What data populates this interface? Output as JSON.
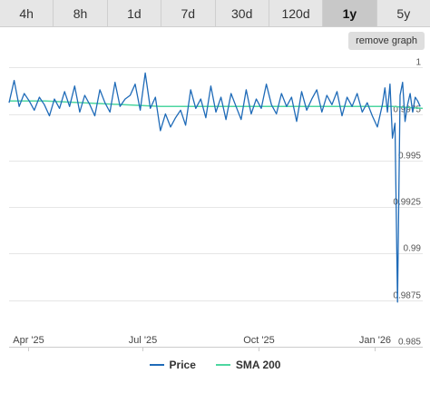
{
  "range_tabs": [
    {
      "label": "4h",
      "active": false
    },
    {
      "label": "8h",
      "active": false
    },
    {
      "label": "1d",
      "active": false
    },
    {
      "label": "7d",
      "active": false
    },
    {
      "label": "30d",
      "active": false
    },
    {
      "label": "120d",
      "active": false
    },
    {
      "label": "1y",
      "active": true
    },
    {
      "label": "5y",
      "active": false
    }
  ],
  "remove_graph_label": "remove graph",
  "colors": {
    "price": "#1f6bb8",
    "sma": "#4dd6a0",
    "grid": "#e6e6e6",
    "tab_active": "#c8c8c8"
  },
  "chart_data": {
    "type": "line",
    "title": "",
    "xlabel": "",
    "ylabel": "",
    "ylim": [
      0.985,
      1.0005
    ],
    "y_ticks": [
      1,
      0.9975,
      0.995,
      0.9925,
      0.99,
      0.9875,
      0.985
    ],
    "y_tick_labels": [
      "1",
      "0.9975",
      "0.995",
      "0.9925",
      "0.99",
      "0.9875",
      "0.985"
    ],
    "x_range": [
      "2025-03-17",
      "2026-02-08"
    ],
    "x_ticks": [
      "2025-04-01",
      "2025-07-01",
      "2025-10-01",
      "2026-01-01"
    ],
    "x_tick_labels": [
      "Apr '25",
      "Jul '25",
      "Oct '25",
      "Jan '26"
    ],
    "grid": true,
    "legend": "bottom",
    "series": [
      {
        "name": "Price",
        "x": [
          "2025-03-17",
          "2025-03-21",
          "2025-03-25",
          "2025-03-29",
          "2025-04-02",
          "2025-04-06",
          "2025-04-10",
          "2025-04-14",
          "2025-04-18",
          "2025-04-22",
          "2025-04-26",
          "2025-04-30",
          "2025-05-04",
          "2025-05-08",
          "2025-05-12",
          "2025-05-16",
          "2025-05-20",
          "2025-05-24",
          "2025-05-28",
          "2025-06-01",
          "2025-06-05",
          "2025-06-09",
          "2025-06-13",
          "2025-06-17",
          "2025-06-21",
          "2025-06-25",
          "2025-06-29",
          "2025-07-03",
          "2025-07-07",
          "2025-07-11",
          "2025-07-15",
          "2025-07-19",
          "2025-07-23",
          "2025-07-27",
          "2025-07-31",
          "2025-08-04",
          "2025-08-08",
          "2025-08-12",
          "2025-08-16",
          "2025-08-20",
          "2025-08-24",
          "2025-08-28",
          "2025-09-01",
          "2025-09-05",
          "2025-09-09",
          "2025-09-13",
          "2025-09-17",
          "2025-09-21",
          "2025-09-25",
          "2025-09-29",
          "2025-10-03",
          "2025-10-07",
          "2025-10-11",
          "2025-10-15",
          "2025-10-19",
          "2025-10-23",
          "2025-10-27",
          "2025-10-31",
          "2025-11-04",
          "2025-11-08",
          "2025-11-12",
          "2025-11-16",
          "2025-11-20",
          "2025-11-24",
          "2025-11-28",
          "2025-12-02",
          "2025-12-06",
          "2025-12-10",
          "2025-12-14",
          "2025-12-18",
          "2025-12-22",
          "2025-12-26",
          "2025-12-30",
          "2026-01-03",
          "2026-01-07",
          "2026-01-09",
          "2026-01-11",
          "2026-01-13",
          "2026-01-15",
          "2026-01-17",
          "2026-01-19",
          "2026-01-21",
          "2026-01-23",
          "2026-01-25",
          "2026-01-27",
          "2026-01-29",
          "2026-01-31",
          "2026-02-02",
          "2026-02-04",
          "2026-02-06"
        ],
        "values": [
          0.9981,
          0.9993,
          0.9979,
          0.9986,
          0.9982,
          0.9977,
          0.9984,
          0.998,
          0.9974,
          0.9983,
          0.9978,
          0.9987,
          0.9979,
          0.999,
          0.9976,
          0.9985,
          0.998,
          0.9974,
          0.9988,
          0.9981,
          0.9976,
          0.9992,
          0.9979,
          0.9983,
          0.9985,
          0.9991,
          0.9977,
          0.9997,
          0.9978,
          0.9984,
          0.9966,
          0.9975,
          0.9968,
          0.9973,
          0.9977,
          0.9969,
          0.9988,
          0.9978,
          0.9983,
          0.9973,
          0.999,
          0.9976,
          0.9984,
          0.9972,
          0.9986,
          0.9979,
          0.9972,
          0.9988,
          0.9975,
          0.9983,
          0.9978,
          0.9991,
          0.998,
          0.9975,
          0.9986,
          0.9979,
          0.9984,
          0.9971,
          0.9987,
          0.9977,
          0.9983,
          0.9988,
          0.9976,
          0.9985,
          0.998,
          0.9987,
          0.9974,
          0.9984,
          0.9979,
          0.9986,
          0.9976,
          0.9981,
          0.9974,
          0.9968,
          0.998,
          0.9989,
          0.9976,
          0.9991,
          0.9962,
          0.997,
          0.9874,
          0.9985,
          0.9992,
          0.9971,
          0.998,
          0.9986,
          0.9976,
          0.9984,
          0.9982,
          0.9979
        ]
      },
      {
        "name": "SMA 200",
        "x": [
          "2025-03-17",
          "2025-04-15",
          "2025-05-15",
          "2025-06-15",
          "2025-07-15",
          "2025-08-15",
          "2025-09-15",
          "2025-10-15",
          "2025-11-15",
          "2025-12-15",
          "2026-01-15",
          "2026-02-08"
        ],
        "values": [
          0.9982,
          0.9982,
          0.9981,
          0.998,
          0.9979,
          0.9979,
          0.9979,
          0.9979,
          0.9979,
          0.9979,
          0.9979,
          0.9978
        ]
      }
    ]
  },
  "legend": [
    {
      "label": "Price",
      "color": "#1f6bb8"
    },
    {
      "label": "SMA 200",
      "color": "#4dd6a0"
    }
  ]
}
